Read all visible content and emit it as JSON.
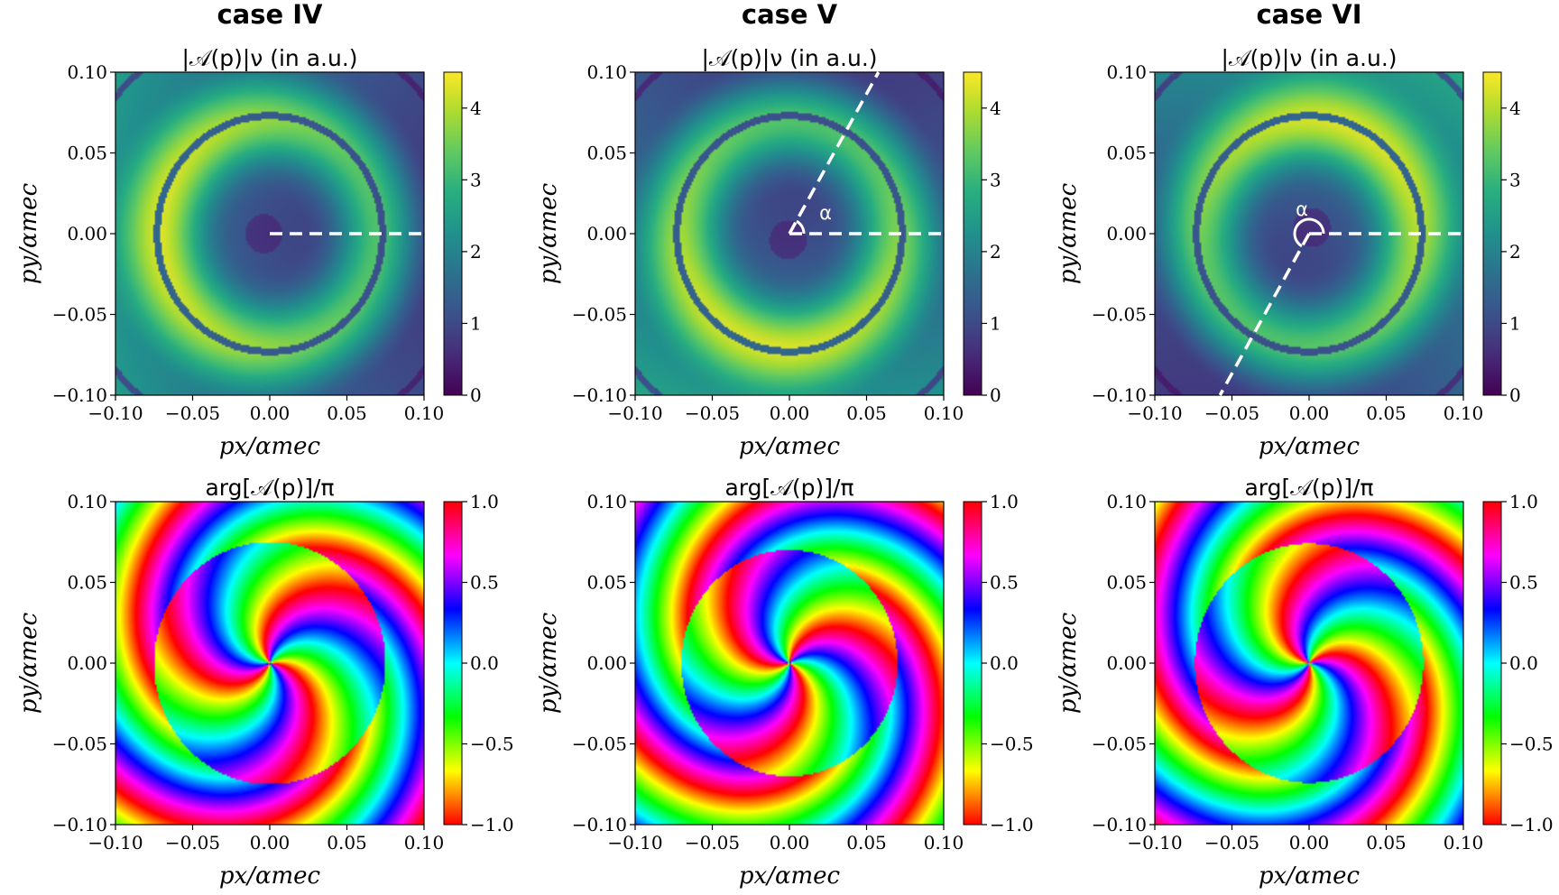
{
  "figure": {
    "columns": [
      {
        "case_title": "case IV"
      },
      {
        "case_title": "case V"
      },
      {
        "case_title": "case VI"
      }
    ],
    "magnitude_title": "|𝒜(p)|ν (in a.u.)",
    "phase_title": "arg[𝒜(p)]/π",
    "annotation_alpha": "α"
  },
  "chart_data": [
    {
      "type": "heatmap",
      "title": "|𝒜(p)|ν (in a.u.)",
      "xlabel": "px/αmec",
      "ylabel": "py/αmec",
      "xlim": [
        -0.1,
        0.1
      ],
      "ylim": [
        -0.1,
        0.1
      ],
      "xticks": [
        "−0.10",
        "−0.05",
        "0.00",
        "0.05",
        "0.10"
      ],
      "yticks": [
        "0.10",
        "0.05",
        "0.00",
        "−0.05",
        "−0.10"
      ],
      "colorbar": {
        "colormap": "viridis",
        "range": [
          0,
          4.5
        ],
        "ticks": [
          "4",
          "3",
          "2",
          "1",
          "0"
        ]
      },
      "dashed_line_angles_deg": [
        0
      ],
      "annotation": ""
    },
    {
      "type": "heatmap",
      "title": "|𝒜(p)|ν (in a.u.)",
      "xlabel": "px/αmec",
      "ylabel": "py/αmec",
      "xlim": [
        -0.1,
        0.1
      ],
      "ylim": [
        -0.1,
        0.1
      ],
      "xticks": [
        "−0.10",
        "−0.05",
        "0.00",
        "0.05",
        "0.10"
      ],
      "yticks": [
        "0.10",
        "0.05",
        "0.00",
        "−0.05",
        "−0.10"
      ],
      "colorbar": {
        "colormap": "viridis",
        "range": [
          0,
          4.5
        ],
        "ticks": [
          "4",
          "3",
          "2",
          "1",
          "0"
        ]
      },
      "dashed_line_angles_deg": [
        0,
        60
      ],
      "annotation": "α"
    },
    {
      "type": "heatmap",
      "title": "|𝒜(p)|ν (in a.u.)",
      "xlabel": "px/αmec",
      "ylabel": "py/αmec",
      "xlim": [
        -0.1,
        0.1
      ],
      "ylim": [
        -0.1,
        0.1
      ],
      "xticks": [
        "−0.10",
        "−0.05",
        "0.00",
        "0.05",
        "0.10"
      ],
      "yticks": [
        "0.10",
        "0.05",
        "0.00",
        "−0.05",
        "−0.10"
      ],
      "colorbar": {
        "colormap": "viridis",
        "range": [
          0,
          4.5
        ],
        "ticks": [
          "4",
          "3",
          "2",
          "1",
          "0"
        ]
      },
      "dashed_line_angles_deg": [
        0,
        240
      ],
      "annotation": "α"
    },
    {
      "type": "heatmap",
      "title": "arg[𝒜(p)]/π",
      "xlabel": "px/αmec",
      "ylabel": "py/αmec",
      "xlim": [
        -0.1,
        0.1
      ],
      "ylim": [
        -0.1,
        0.1
      ],
      "xticks": [
        "−0.10",
        "−0.05",
        "0.00",
        "0.05",
        "0.10"
      ],
      "yticks": [
        "0.10",
        "0.05",
        "0.00",
        "−0.05",
        "−0.10"
      ],
      "colorbar": {
        "colormap": "hsv",
        "range": [
          -1,
          1
        ],
        "ticks": [
          "1.0",
          "0.5",
          "0.0",
          "−0.5",
          "−1.0"
        ]
      }
    },
    {
      "type": "heatmap",
      "title": "arg[𝒜(p)]/π",
      "xlabel": "px/αmec",
      "ylabel": "py/αmec",
      "xlim": [
        -0.1,
        0.1
      ],
      "ylim": [
        -0.1,
        0.1
      ],
      "xticks": [
        "−0.10",
        "−0.05",
        "0.00",
        "0.05",
        "0.10"
      ],
      "yticks": [
        "0.10",
        "0.05",
        "0.00",
        "−0.05",
        "−0.10"
      ],
      "colorbar": {
        "colormap": "hsv",
        "range": [
          -1,
          1
        ],
        "ticks": [
          "1.0",
          "0.5",
          "0.0",
          "−0.5",
          "−1.0"
        ]
      }
    },
    {
      "type": "heatmap",
      "title": "arg[𝒜(p)]/π",
      "xlabel": "px/αmec",
      "ylabel": "py/αmec",
      "xlim": [
        -0.1,
        0.1
      ],
      "ylim": [
        -0.1,
        0.1
      ],
      "xticks": [
        "−0.10",
        "−0.05",
        "0.00",
        "0.05",
        "0.10"
      ],
      "yticks": [
        "0.10",
        "0.05",
        "0.00",
        "−0.05",
        "−0.10"
      ],
      "colorbar": {
        "colormap": "hsv",
        "range": [
          -1,
          1
        ],
        "ticks": [
          "1.0",
          "0.5",
          "0.0",
          "−0.5",
          "−1.0"
        ]
      }
    }
  ]
}
